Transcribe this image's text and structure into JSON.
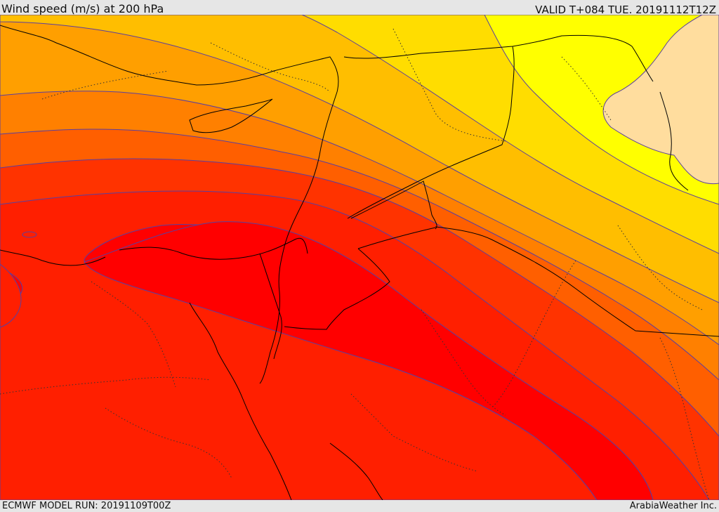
{
  "header": {
    "title": "Wind speed (m/s) at 200 hPa",
    "valid": "VALID T+084 TUE. 20191112T12Z"
  },
  "footer": {
    "model_run": "ECMWF MODEL RUN: 20191109T00Z",
    "credit": "ArabiaWeather Inc."
  },
  "colors": {
    "band_1": "#ffdd9e",
    "band_2": "#ffff00",
    "band_3": "#ffdd00",
    "band_4": "#ffbe00",
    "band_5": "#ff9f00",
    "band_6": "#ff8000",
    "band_7": "#ff5f00",
    "band_8": "#ff3300",
    "band_9": "#ff1f00",
    "band_10": "#ff0000",
    "contour": "#5a3fa0",
    "border": "#000000"
  }
}
